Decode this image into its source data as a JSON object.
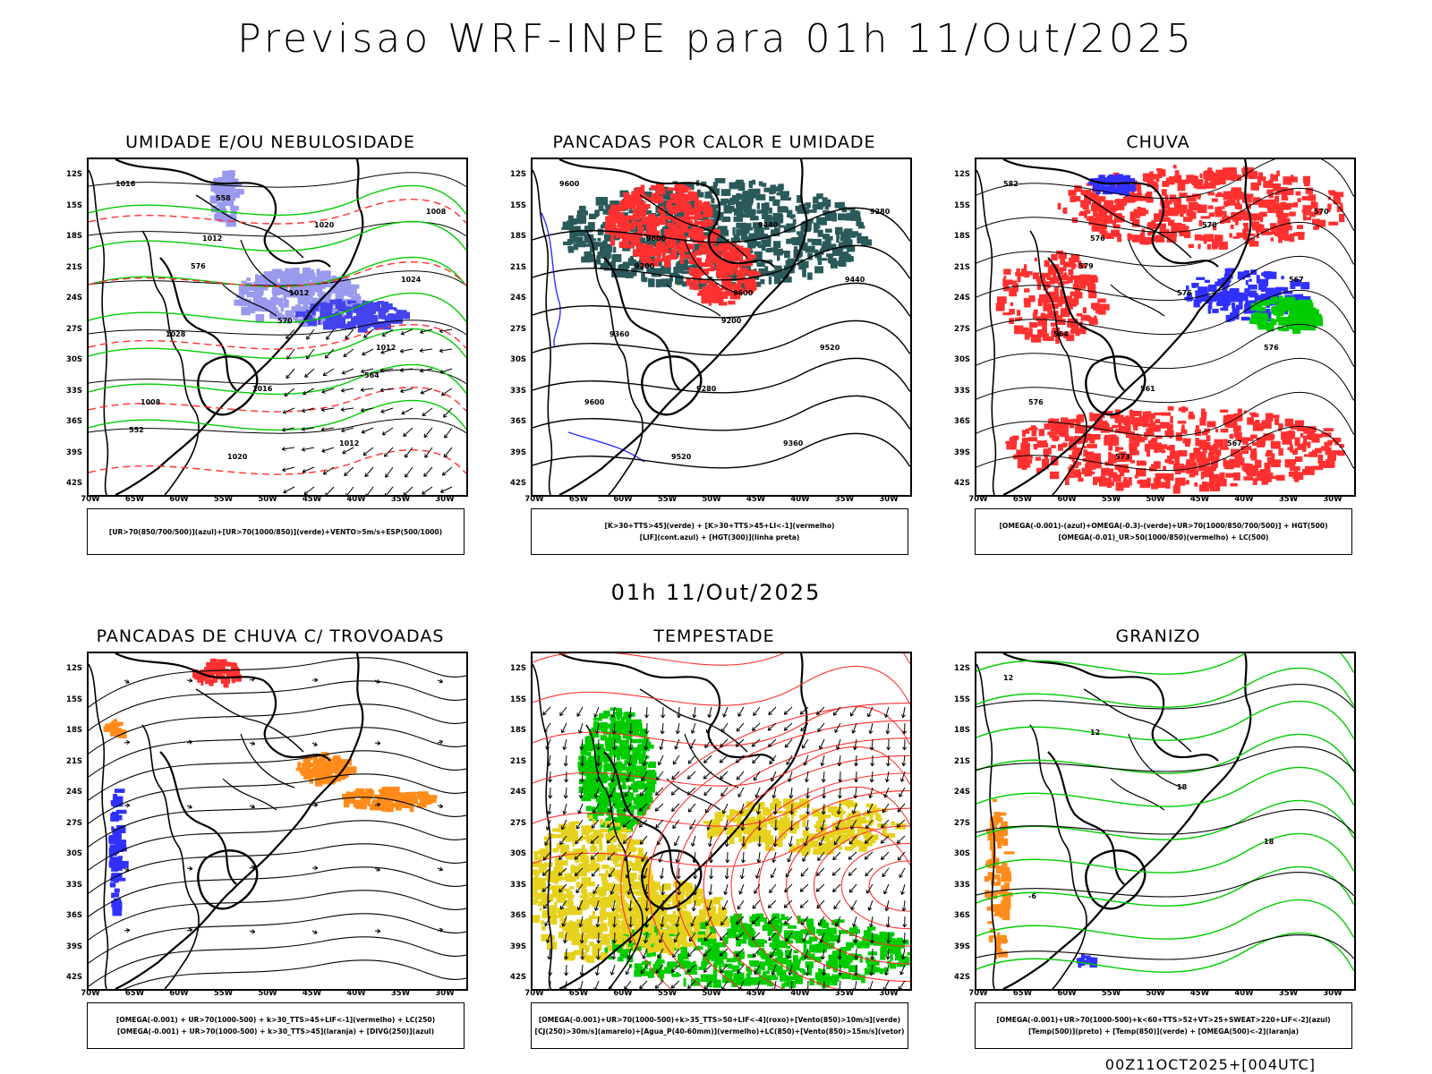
{
  "title": "Previsao WRF-INPE  para 01h 11/Out/2025",
  "subtitle": "01h 11/Out/2025",
  "footer": "00Z11OCT2025+[004UTC]",
  "lat_labels": [
    "12S",
    "15S",
    "18S",
    "21S",
    "24S",
    "27S",
    "30S",
    "33S",
    "36S",
    "39S",
    "42S"
  ],
  "lon_labels": [
    "70W",
    "65W",
    "60W",
    "55W",
    "50W",
    "45W",
    "40W",
    "35W",
    "30W"
  ],
  "colors": {
    "blue": "#3030ff",
    "green": "#00cc00",
    "red": "#ff3030",
    "orange": "#ff8c1a",
    "yellow": "#e6d21e",
    "teal": "#2a5a5a",
    "lavender": "#9999ee"
  },
  "panels": [
    {
      "title": "UMIDADE E/OU NEBULOSIDADE",
      "legend": [
        "[UR>70(850/700/500)](azul)+[UR>70(1000/850)](verde)+VENTO>5m/s+ESP(500/1000)"
      ]
    },
    {
      "title": "PANCADAS POR CALOR E UMIDADE",
      "legend": [
        "[K>30+TTS>45](verde)  +  [K>30+TTS>45+LI<-1](vermelho)",
        "[LIF](cont.azul)  +  [HGT(300)](linha preta)"
      ]
    },
    {
      "title": "CHUVA",
      "legend": [
        "[OMEGA(-0.001)-(azul)+OMEGA(-0.3)-(verde)+UR>70(1000/850/700/500)]  +  HGT(500)",
        "[OMEGA(-0.01)_UR>50(1000/850)(vermelho)  +  LC(500)"
      ]
    },
    {
      "title": "PANCADAS DE CHUVA C/ TROVOADAS",
      "legend": [
        "[OMEGA(-0.001)  +  UR>70(1000-500)  +  k>30_TTS>45+LIF<-1](vermelho)  +  LC(250)",
        "[OMEGA(-0.001)  +  UR>70(1000-500)  +  k>30_TTS>45](laranja)  +  [DIVG(250)](azul)"
      ]
    },
    {
      "title": "TEMPESTADE",
      "legend": [
        "[OMEGA(-0.001)+UR>70(1000-500)+k>35_TTS>50+LIF<-4](roxo)+[Vento(850)>10m/s](verde)",
        "[CJ(250)>30m/s](amarelo)+[Agua_P(40-60mm)](vermelho)+LC(850)+[Vento(850)>15m/s](vetor)"
      ]
    },
    {
      "title": "GRANIZO",
      "legend": [
        "[OMEGA(-0.001)+UR>70(1000-500)+k<60+TTS>52+VT>25+SWEAT>220+LIF<-2](azul)",
        "[Temp(500)](preto)  +  [Temp(850)](verde)  +  [OMEGA(500)<-2](laranja)"
      ]
    }
  ],
  "contour_labels": {
    "p1": [
      "1016",
      "1012",
      "1012",
      "1012",
      "1008",
      "1020",
      "1020",
      "1024",
      "1028",
      "1016",
      "1012",
      "1008",
      "576",
      "570",
      "564",
      "552",
      "558"
    ],
    "p2": [
      "9600",
      "9600",
      "9600",
      "9520",
      "9600",
      "9520",
      "9440",
      "9440",
      "9360",
      "9280",
      "9360",
      "9280",
      "9200",
      "9200"
    ],
    "p3": [
      "582",
      "576",
      "576",
      "576",
      "576",
      "573",
      "570",
      "567",
      "564",
      "561",
      "567",
      "570",
      "579"
    ],
    "p6": [
      "12",
      "12",
      "18",
      "18",
      "-6"
    ]
  }
}
